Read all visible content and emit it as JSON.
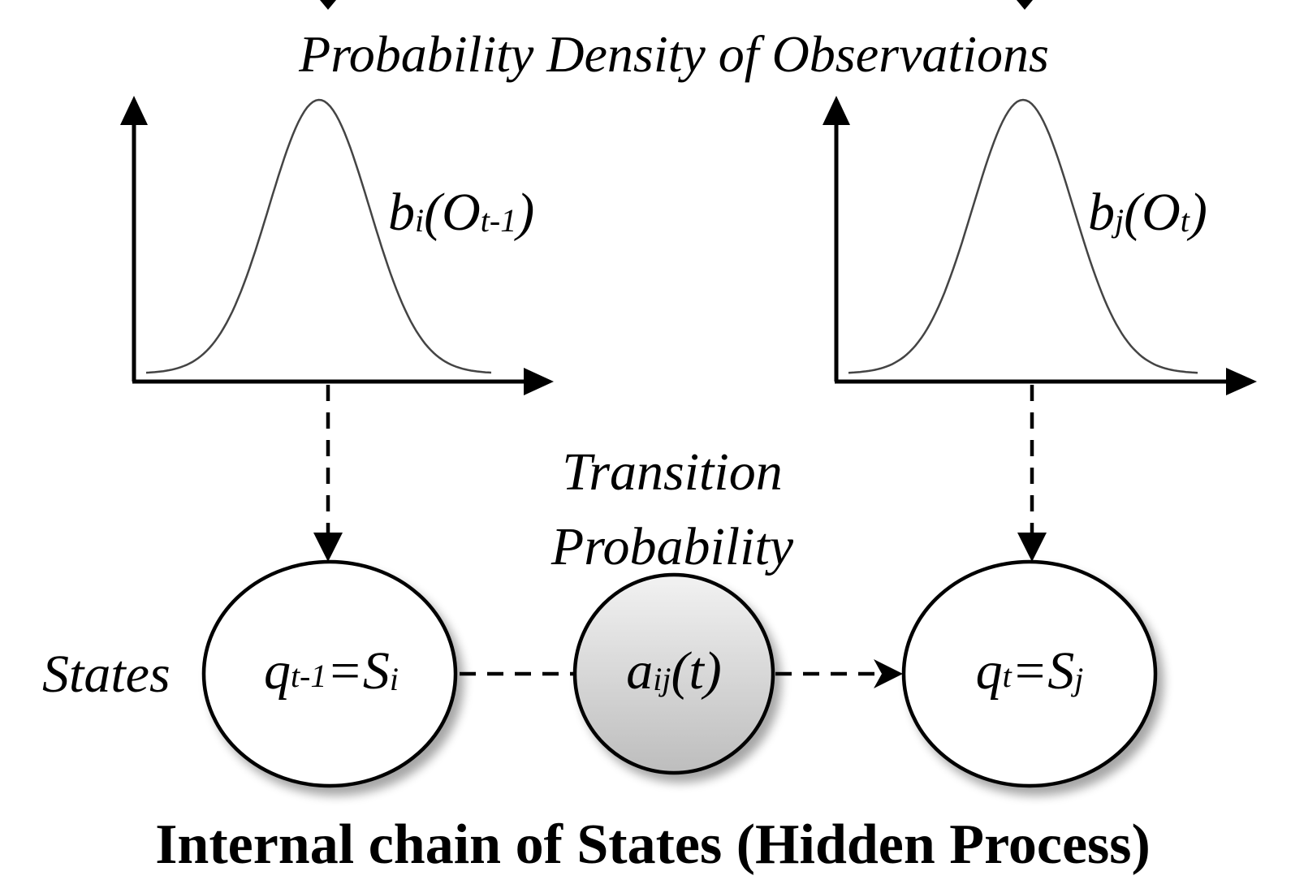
{
  "header": {
    "title": "Probability Density of Observations"
  },
  "densities": {
    "left": {
      "func": "b",
      "sub": "i",
      "arg": "O",
      "arg_sub": "t-1"
    },
    "right": {
      "func": "b",
      "sub": "j",
      "arg": "O",
      "arg_sub": "t"
    }
  },
  "transition": {
    "label_line1": "Transition",
    "label_line2": "Probability",
    "node": {
      "sym": "a",
      "sub": "ij",
      "arg": "(t)"
    }
  },
  "states": {
    "label": "States",
    "left": {
      "sym": "q",
      "sub": "t-1",
      "eq": "=S",
      "eq_sub": "i"
    },
    "right": {
      "sym": "q",
      "sub": "t",
      "eq": "=S",
      "eq_sub": "j"
    }
  },
  "footer": {
    "caption": "Internal chain of States (Hidden Process)"
  },
  "colors": {
    "ink": "#000000",
    "curve": "#444444",
    "node_fill_top": "#f2f2f2",
    "node_fill_bottom": "#bdbdbd"
  }
}
